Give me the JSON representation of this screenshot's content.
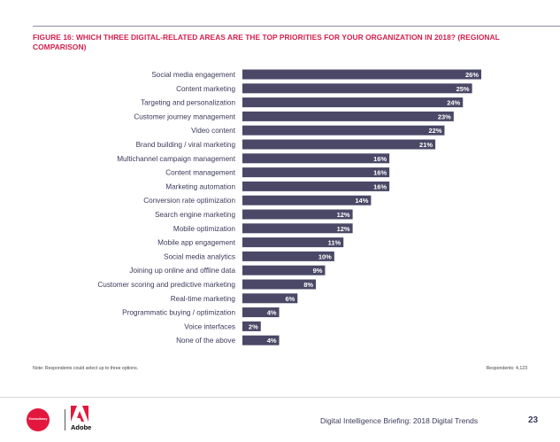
{
  "figure": {
    "title": "FIGURE 16: WHICH THREE DIGITAL-RELATED AREAS ARE THE TOP PRIORITIES FOR YOUR ORGANIZATION IN 2018? (REGIONAL COMPARISON)"
  },
  "chart_data": {
    "type": "bar",
    "orientation": "horizontal",
    "title": "FIGURE 16: WHICH THREE DIGITAL-RELATED AREAS ARE THE TOP PRIORITIES FOR YOUR ORGANIZATION IN 2018? (REGIONAL COMPARISON)",
    "categories": [
      "Social media engagement",
      "Content marketing",
      "Targeting and personalization",
      "Customer journey management",
      "Video content",
      "Brand building / viral marketing",
      "Multichannel campaign management",
      "Content management",
      "Marketing automation",
      "Conversion rate optimization",
      "Search engine marketing",
      "Mobile optimization",
      "Mobile app engagement",
      "Social media analytics",
      "Joining up online and offline data",
      "Customer scoring and predictive marketing",
      "Real-time marketing",
      "Programmatic buying / optimization",
      "Voice interfaces",
      "None of the above"
    ],
    "values": [
      26,
      25,
      24,
      23,
      22,
      21,
      16,
      16,
      16,
      14,
      12,
      12,
      11,
      10,
      9,
      8,
      6,
      4,
      2,
      4
    ],
    "value_suffix": "%",
    "xlim": [
      0,
      26
    ],
    "bar_color": "#4a4866",
    "label_color": "#ffffff"
  },
  "notes": {
    "left": "Note: Respondents could select up to three options.",
    "right": "Respondents: 4,123"
  },
  "footer": {
    "econsultancy_logo_text": "Econsultancy",
    "adobe_logo_text": "Adobe",
    "report_title": "Digital Intelligence Briefing: 2018 Digital Trends",
    "page_number": "23"
  }
}
